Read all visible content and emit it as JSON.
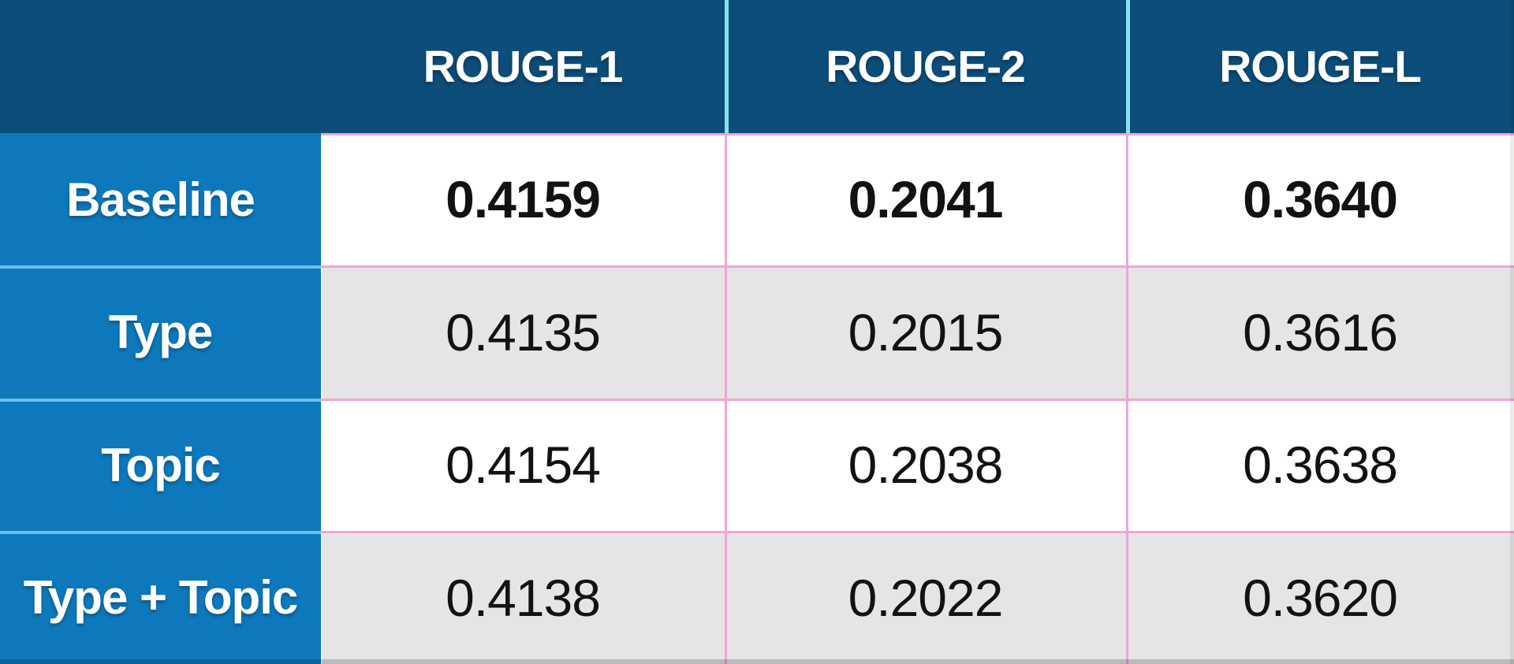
{
  "table": {
    "corner_label": "",
    "columns": [
      "ROUGE-1",
      "ROUGE-2",
      "ROUGE-L"
    ],
    "rows": [
      {
        "label": "Baseline",
        "values": [
          "0.4159",
          "0.2041",
          "0.3640"
        ],
        "bold": true
      },
      {
        "label": "Type",
        "values": [
          "0.4135",
          "0.2015",
          "0.3616"
        ],
        "bold": false
      },
      {
        "label": "Topic",
        "values": [
          "0.4154",
          "0.2038",
          "0.3638"
        ],
        "bold": false
      },
      {
        "label": "Type + Topic",
        "values": [
          "0.4138",
          "0.2022",
          "0.3620"
        ],
        "bold": false
      }
    ]
  },
  "colors": {
    "header_bg": "#0d4d7a",
    "label_bg": "#0d78bc",
    "row_bg": "#ffffff",
    "row_alt_bg": "#e5e4e7",
    "border_pink": "#f0a6d4",
    "border_cyan": "#87e2f0",
    "border_lightblue": "#6ebeeb",
    "text_light": "#ffffff",
    "text_dark": "#121212"
  },
  "chart_data": {
    "type": "table",
    "title": "",
    "columns": [
      "",
      "ROUGE-1",
      "ROUGE-2",
      "ROUGE-L"
    ],
    "rows": [
      [
        "Baseline",
        0.4159,
        0.2041,
        0.364
      ],
      [
        "Type",
        0.4135,
        0.2015,
        0.3616
      ],
      [
        "Topic",
        0.4154,
        0.2038,
        0.3638
      ],
      [
        "Type + Topic",
        0.4138,
        0.2022,
        0.362
      ]
    ],
    "notes": "Baseline row values are bold; rows alternate white and light-gray backgrounds"
  }
}
